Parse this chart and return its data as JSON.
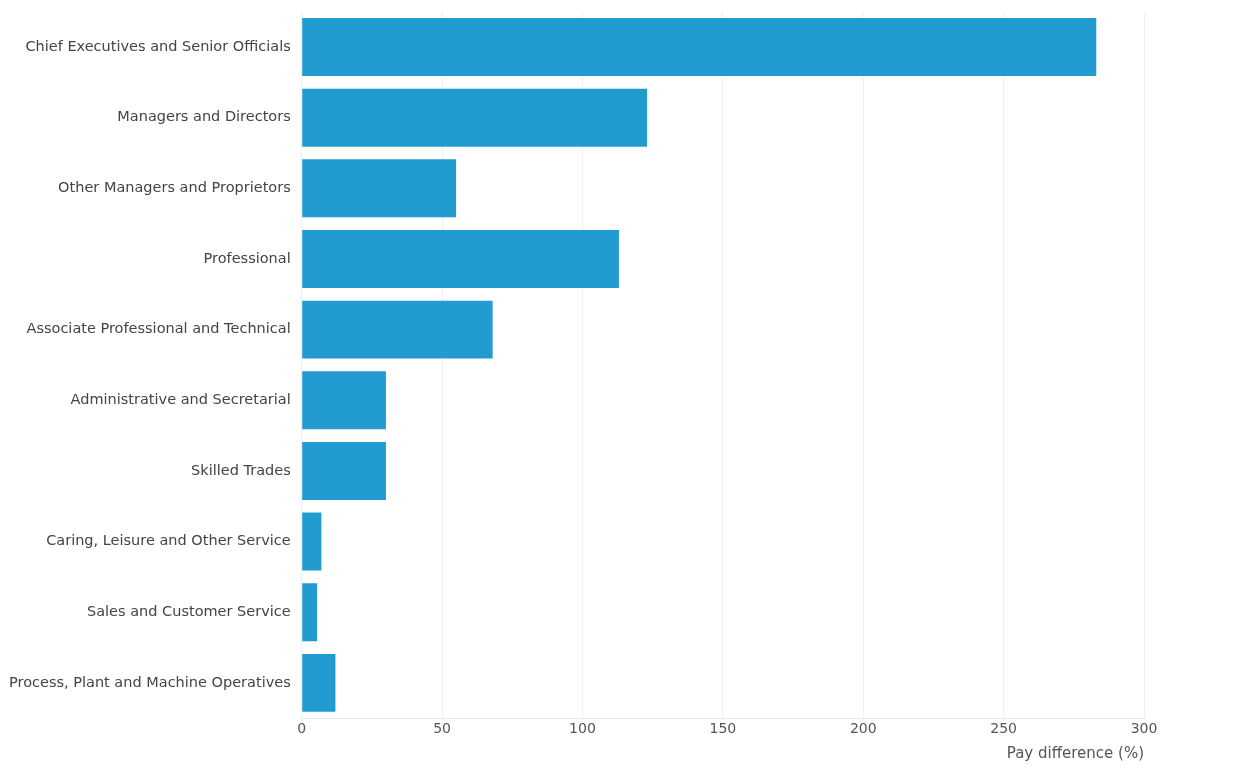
{
  "chart_data": {
    "type": "bar",
    "orientation": "horizontal",
    "categories": [
      "Chief Executives and Senior Officials",
      "Managers and Directors",
      "Other Managers and Proprietors",
      "Professional",
      "Associate Professional and Technical",
      "Administrative and Secretarial",
      "Skilled Trades",
      "Caring, Leisure and Other Service",
      "Sales and Customer Service",
      "Process, Plant and Machine Operatives"
    ],
    "values": [
      283,
      123,
      55,
      113,
      68,
      30,
      30,
      7,
      5.5,
      12
    ],
    "color": "#229bd0",
    "xlabel": "Pay difference (%)",
    "xlim": [
      0,
      300
    ],
    "xticks": [
      0,
      50,
      100,
      150,
      200,
      250,
      300
    ],
    "grid": "x",
    "legend": false
  }
}
